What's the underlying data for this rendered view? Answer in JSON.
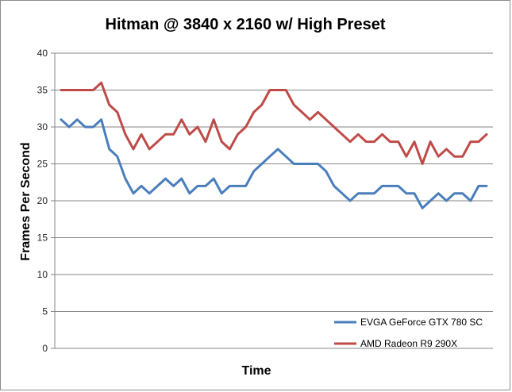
{
  "chart_data": {
    "type": "line",
    "title": "Hitman @ 3840 x 2160 w/ High Preset",
    "xlabel": "Time",
    "ylabel": "Frames Per Second",
    "ylim": [
      0,
      40
    ],
    "yticks": [
      0,
      5,
      10,
      15,
      20,
      25,
      30,
      35,
      40
    ],
    "grid": "horizontal",
    "legend_position": "bottom-right",
    "series": [
      {
        "name": "EVGA GeForce GTX 780 SC",
        "color": "#4a7ebb",
        "values": [
          31,
          30,
          31,
          30,
          30,
          31,
          27,
          26,
          23,
          21,
          22,
          21,
          22,
          23,
          22,
          23,
          21,
          22,
          22,
          23,
          21,
          22,
          22,
          22,
          24,
          25,
          26,
          27,
          26,
          25,
          25,
          25,
          25,
          24,
          22,
          21,
          20,
          21,
          21,
          21,
          22,
          22,
          22,
          21,
          21,
          19,
          20,
          21,
          20,
          21,
          21,
          20,
          22,
          22
        ]
      },
      {
        "name": "AMD Radeon R9 290X",
        "color": "#be4b48",
        "values": [
          35,
          35,
          35,
          35,
          35,
          36,
          33,
          32,
          29,
          27,
          29,
          27,
          28,
          29,
          29,
          31,
          29,
          30,
          28,
          31,
          28,
          27,
          29,
          30,
          32,
          33,
          35,
          35,
          35,
          33,
          32,
          31,
          32,
          31,
          30,
          29,
          28,
          29,
          28,
          28,
          29,
          28,
          28,
          26,
          28,
          25,
          28,
          26,
          27,
          26,
          26,
          28,
          28,
          29
        ]
      }
    ]
  }
}
